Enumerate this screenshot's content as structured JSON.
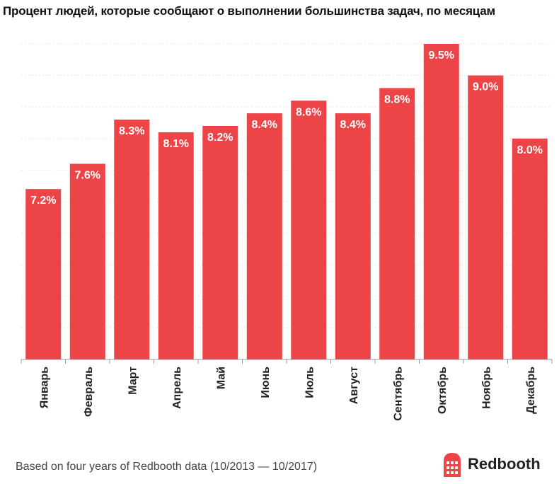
{
  "chart_data": {
    "type": "bar",
    "title": "Процент людей, которые сообщают о выполнении большинства задач, по месяцам",
    "categories": [
      "Январь",
      "Февраль",
      "Март",
      "Апрель",
      "Май",
      "Июнь",
      "Июль",
      "Август",
      "Сентябрь",
      "Октябрь",
      "Ноябрь",
      "Декабрь"
    ],
    "values": [
      7.2,
      7.6,
      8.3,
      8.1,
      8.2,
      8.4,
      8.6,
      8.4,
      8.8,
      9.5,
      9.0,
      8.0
    ],
    "data_labels": [
      "7.2%",
      "7.6%",
      "8.3%",
      "8.1%",
      "8.2%",
      "8.4%",
      "8.6%",
      "8.4%",
      "8.8%",
      "9.5%",
      "9.0%",
      "8.0%"
    ],
    "ylim": [
      4.5,
      9.5
    ],
    "bar_color": "#ED4448",
    "grid": true,
    "xlabel": "",
    "ylabel": ""
  },
  "footer": {
    "note": "Based on four years of Redbooth data (10/2013 — 10/2017)",
    "brand": "Redbooth",
    "brand_icon": "redbooth-logo-icon",
    "brand_color": "#ED4448"
  }
}
